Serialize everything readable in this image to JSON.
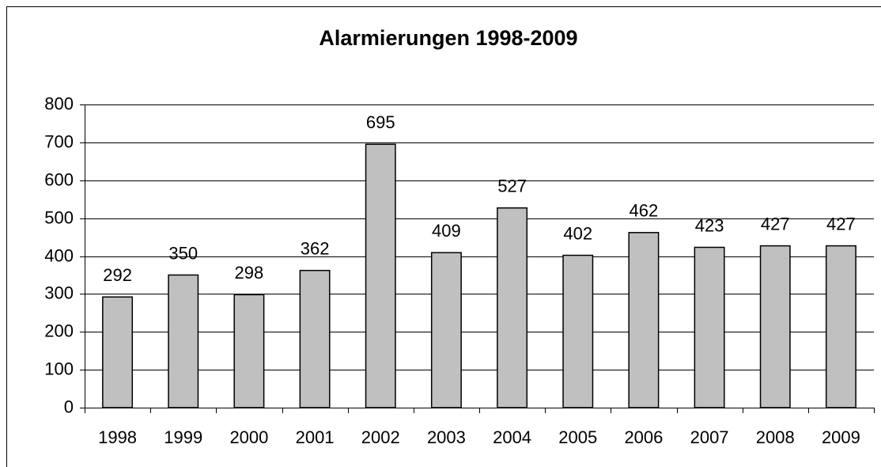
{
  "chart_data": {
    "type": "bar",
    "title": "Alarmierungen 1998-2009",
    "categories": [
      "1998",
      "1999",
      "2000",
      "2001",
      "2002",
      "2003",
      "2004",
      "2005",
      "2006",
      "2007",
      "2008",
      "2009"
    ],
    "values": [
      292,
      350,
      298,
      362,
      695,
      409,
      527,
      402,
      462,
      423,
      427,
      427
    ],
    "color": "#c0c0c0",
    "ylim": [
      0,
      800
    ],
    "yticks": [
      0,
      100,
      200,
      300,
      400,
      500,
      600,
      700,
      800
    ],
    "grid": true
  }
}
